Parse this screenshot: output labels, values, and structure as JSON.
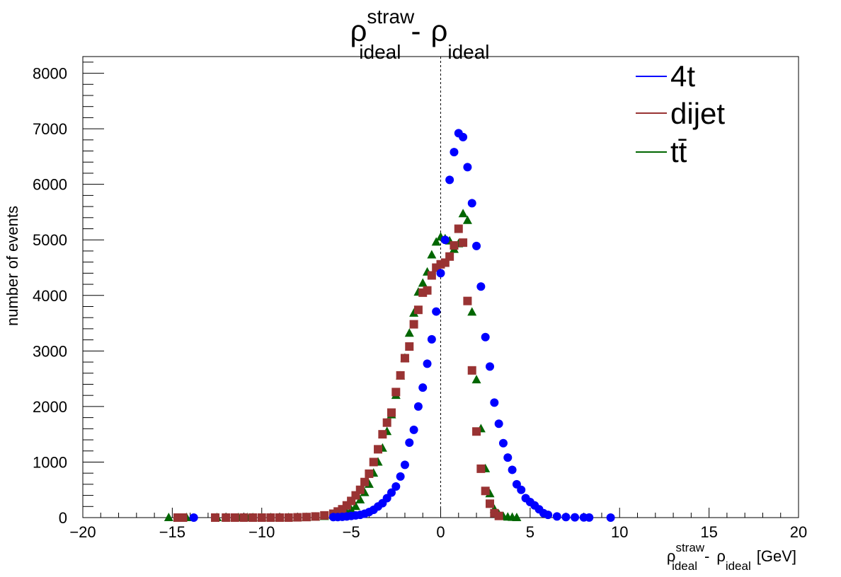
{
  "chart_data": {
    "type": "scatter",
    "title": {
      "symbol": "ρ",
      "sup": "straw",
      "sub": "ideal",
      "minus": "-",
      "symbol2": "ρ",
      "sub2": "ideal"
    },
    "xlabel": {
      "symbol": "ρ",
      "sup": "straw",
      "sub": "ideal",
      "minus": "-",
      "symbol2": "ρ",
      "sub2": "ideal",
      "unit": "[GeV]"
    },
    "ylabel": "number of events",
    "xlim": [
      -20,
      20
    ],
    "ylim": [
      0,
      8300
    ],
    "xticks": [
      "−20",
      "−15",
      "−10",
      "−5",
      "0",
      "5",
      "10",
      "15",
      "20"
    ],
    "xtick_values": [
      -20,
      -15,
      -10,
      -5,
      0,
      5,
      10,
      15,
      20
    ],
    "yticks": [
      "0",
      "1000",
      "2000",
      "3000",
      "4000",
      "5000",
      "6000",
      "7000",
      "8000"
    ],
    "ytick_values": [
      0,
      1000,
      2000,
      3000,
      4000,
      5000,
      6000,
      7000,
      8000
    ],
    "grid": false,
    "reference_line_x": 0,
    "legend_position": "top-right",
    "series": [
      {
        "name": "4t",
        "color": "#0000ff",
        "marker": "circle",
        "x": [
          -13.8,
          -6.0,
          -5.75,
          -5.5,
          -5.25,
          -5.0,
          -4.75,
          -4.5,
          -4.25,
          -4.0,
          -3.75,
          -3.5,
          -3.25,
          -3.0,
          -2.75,
          -2.5,
          -2.25,
          -2.0,
          -1.75,
          -1.5,
          -1.25,
          -1.0,
          -0.75,
          -0.5,
          -0.25,
          0.0,
          0.25,
          0.5,
          0.75,
          1.0,
          1.25,
          1.5,
          1.75,
          2.0,
          2.25,
          2.5,
          2.75,
          3.0,
          3.25,
          3.5,
          3.75,
          4.0,
          4.25,
          4.5,
          4.75,
          5.0,
          5.25,
          5.5,
          5.75,
          6.0,
          6.5,
          7.0,
          7.5,
          8.0,
          8.3,
          9.5
        ],
        "y": [
          0,
          10,
          10,
          15,
          20,
          30,
          40,
          50,
          70,
          100,
          140,
          200,
          260,
          350,
          450,
          560,
          740,
          950,
          1350,
          1580,
          2000,
          2340,
          2770,
          3210,
          3710,
          4400,
          5000,
          6080,
          6580,
          6920,
          6850,
          6310,
          5660,
          4890,
          4160,
          3250,
          2720,
          2070,
          1690,
          1340,
          1080,
          860,
          600,
          500,
          350,
          280,
          220,
          150,
          80,
          50,
          20,
          10,
          5,
          3,
          2,
          0
        ]
      },
      {
        "name": "dijet",
        "color": "#993333",
        "marker": "square",
        "x": [
          -14.7,
          -14.4,
          -12.6,
          -12.0,
          -11.5,
          -11.0,
          -10.5,
          -10.0,
          -9.5,
          -9.0,
          -8.5,
          -8.0,
          -7.5,
          -7.0,
          -6.5,
          -6.0,
          -5.75,
          -5.5,
          -5.25,
          -5.0,
          -4.75,
          -4.5,
          -4.25,
          -4.0,
          -3.75,
          -3.5,
          -3.25,
          -3.0,
          -2.75,
          -2.5,
          -2.25,
          -2.0,
          -1.75,
          -1.5,
          -1.25,
          -1.0,
          -0.75,
          -0.5,
          -0.25,
          0.0,
          0.25,
          0.5,
          0.75,
          1.0,
          1.25,
          1.5,
          1.75,
          2.0,
          2.25,
          2.5,
          2.75,
          3.0,
          3.25
        ],
        "y": [
          0,
          0,
          0,
          0,
          0,
          0,
          0,
          0,
          0,
          0,
          0,
          5,
          10,
          20,
          40,
          70,
          110,
          150,
          220,
          300,
          400,
          500,
          640,
          790,
          1000,
          1230,
          1500,
          1710,
          1890,
          2260,
          2560,
          2870,
          3080,
          3480,
          3740,
          4050,
          4090,
          4360,
          4500,
          4560,
          4590,
          4700,
          4900,
          5200,
          4950,
          3900,
          2650,
          1550,
          880,
          480,
          250,
          80,
          30
        ]
      },
      {
        "name": "tt̄",
        "color": "#006600",
        "marker": "triangle",
        "x": [
          -15.2,
          -14.2,
          -12.5,
          -12.0,
          -11.3,
          -10.8,
          -10.5,
          -10.0,
          -9.5,
          -9.0,
          -8.5,
          -8.0,
          -7.5,
          -7.0,
          -6.5,
          -6.0,
          -5.5,
          -5.25,
          -5.0,
          -4.75,
          -4.5,
          -4.25,
          -4.0,
          -3.75,
          -3.5,
          -3.25,
          -3.0,
          -2.75,
          -2.5,
          -2.25,
          -2.0,
          -1.75,
          -1.5,
          -1.25,
          -1.0,
          -0.75,
          -0.5,
          -0.25,
          0.0,
          0.25,
          0.5,
          0.75,
          1.0,
          1.25,
          1.5,
          1.75,
          2.0,
          2.25,
          2.5,
          2.75,
          3.0,
          3.25,
          3.5,
          3.75,
          4.0,
          4.25
        ],
        "y": [
          0,
          0,
          0,
          0,
          0,
          0,
          0,
          0,
          0,
          0,
          0,
          0,
          5,
          10,
          20,
          40,
          60,
          90,
          140,
          200,
          320,
          450,
          600,
          800,
          1000,
          1250,
          1550,
          1850,
          2200,
          2550,
          2870,
          3320,
          3680,
          4060,
          4220,
          4420,
          4730,
          4960,
          5050,
          5020,
          4980,
          4830,
          4930,
          5470,
          5350,
          3700,
          2480,
          1600,
          880,
          430,
          150,
          60,
          20,
          10,
          5,
          0
        ]
      }
    ]
  }
}
